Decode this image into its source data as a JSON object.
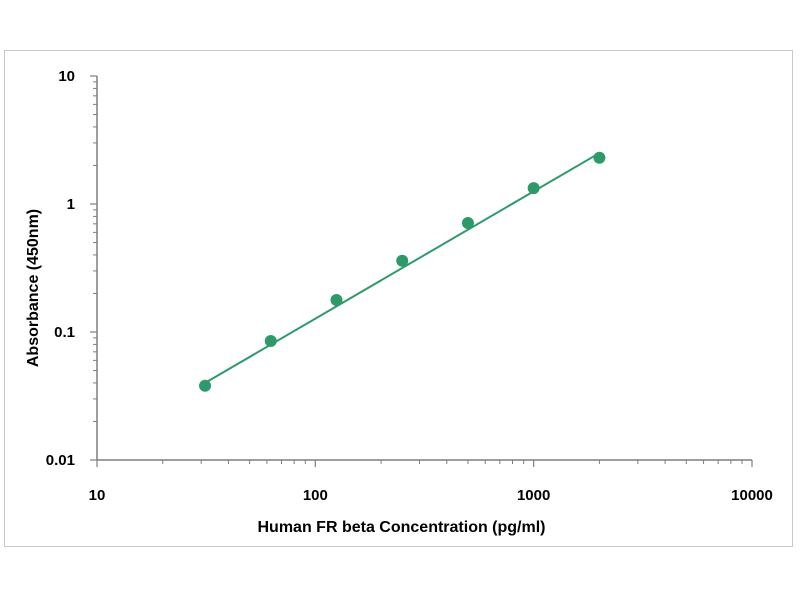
{
  "chart_data": {
    "type": "scatter",
    "xlabel": "Human FR beta Concentration (pg/ml)",
    "ylabel": "Absorbance (450nm)",
    "x_scale": "log",
    "y_scale": "log",
    "xlim": [
      10,
      10000
    ],
    "ylim": [
      0.01,
      10
    ],
    "x_ticks": [
      "10",
      "100",
      "1000",
      "10000"
    ],
    "y_ticks": [
      "0.01",
      "0.1",
      "1",
      "10"
    ],
    "grid": false,
    "legend": "none",
    "colors": {
      "series": "#2e9a6a",
      "axis": "#7f7f7f"
    },
    "series": [
      {
        "x": [
          31.25,
          62.5,
          125,
          250,
          500,
          1000,
          2000
        ],
        "y": [
          0.038,
          0.085,
          0.178,
          0.36,
          0.71,
          1.33,
          2.3
        ]
      }
    ],
    "fit_line": {
      "x": [
        31.25,
        2000
      ],
      "y": [
        0.04,
        2.5
      ]
    }
  }
}
